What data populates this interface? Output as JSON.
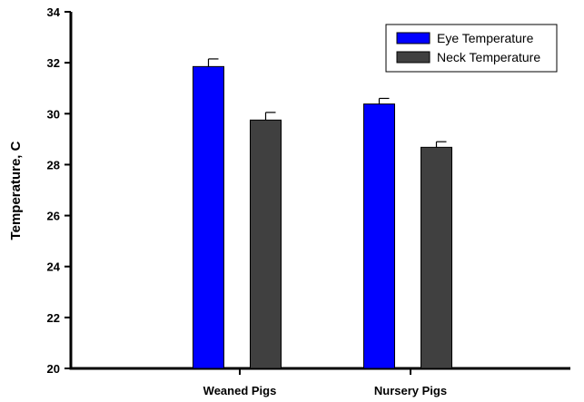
{
  "chart_data": {
    "type": "bar",
    "title": "",
    "xlabel": "",
    "ylabel": "Temperature, C",
    "ylim": [
      20,
      34
    ],
    "yticks": [
      20,
      22,
      24,
      26,
      28,
      30,
      32,
      34
    ],
    "categories": [
      "Weaned Pigs",
      "Nursery Pigs"
    ],
    "series": [
      {
        "name": "Eye Temperature",
        "color": "#0000ff",
        "values": [
          31.85,
          30.38
        ],
        "error": [
          0.3,
          0.22
        ]
      },
      {
        "name": "Neck Temperature",
        "color": "#404040",
        "values": [
          29.75,
          28.68
        ],
        "error": [
          0.3,
          0.22
        ]
      }
    ],
    "legend_position": "top-right",
    "grid": false
  }
}
